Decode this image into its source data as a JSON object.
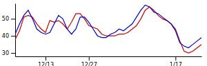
{
  "chart_data": {
    "type": "line",
    "x": [
      0,
      1,
      2,
      3,
      4,
      5,
      6,
      7,
      8,
      9,
      10,
      11,
      12,
      13,
      14,
      15,
      16,
      17,
      18,
      19,
      20,
      21,
      22,
      23,
      24,
      25,
      26,
      27,
      28,
      29,
      30,
      31,
      32,
      33,
      34,
      35,
      36,
      37,
      38,
      39,
      40,
      41,
      42,
      43
    ],
    "series": [
      {
        "color": "#cc0000",
        "values": [
          38,
          43,
          51,
          52,
          51,
          47,
          44,
          42,
          49,
          48,
          49,
          47,
          44,
          48,
          53,
          53,
          50,
          46,
          45,
          44,
          41,
          40,
          40,
          40,
          41,
          41,
          42,
          44,
          46,
          50,
          55,
          57,
          55,
          52,
          50,
          49,
          47,
          44,
          37,
          31,
          30,
          31,
          33,
          35
        ]
      },
      {
        "color": "#0000cc",
        "values": [
          41,
          47,
          52,
          55,
          50,
          44,
          42,
          41,
          42,
          47,
          52,
          50,
          44,
          41,
          44,
          51,
          51,
          48,
          44,
          40,
          39,
          39,
          41,
          42,
          44,
          43,
          45,
          47,
          51,
          55,
          58,
          57,
          54,
          53,
          51,
          49,
          47,
          43,
          36,
          34,
          33,
          35,
          37,
          39
        ]
      }
    ],
    "xlim": [
      0,
      43
    ],
    "xticks": [
      {
        "value": 7,
        "label": "12/13"
      },
      {
        "value": 17,
        "label": "12/27"
      },
      {
        "value": 37,
        "label": "1/17"
      }
    ],
    "ylim": [
      28,
      59
    ],
    "yticks": [
      30,
      40,
      50
    ]
  }
}
